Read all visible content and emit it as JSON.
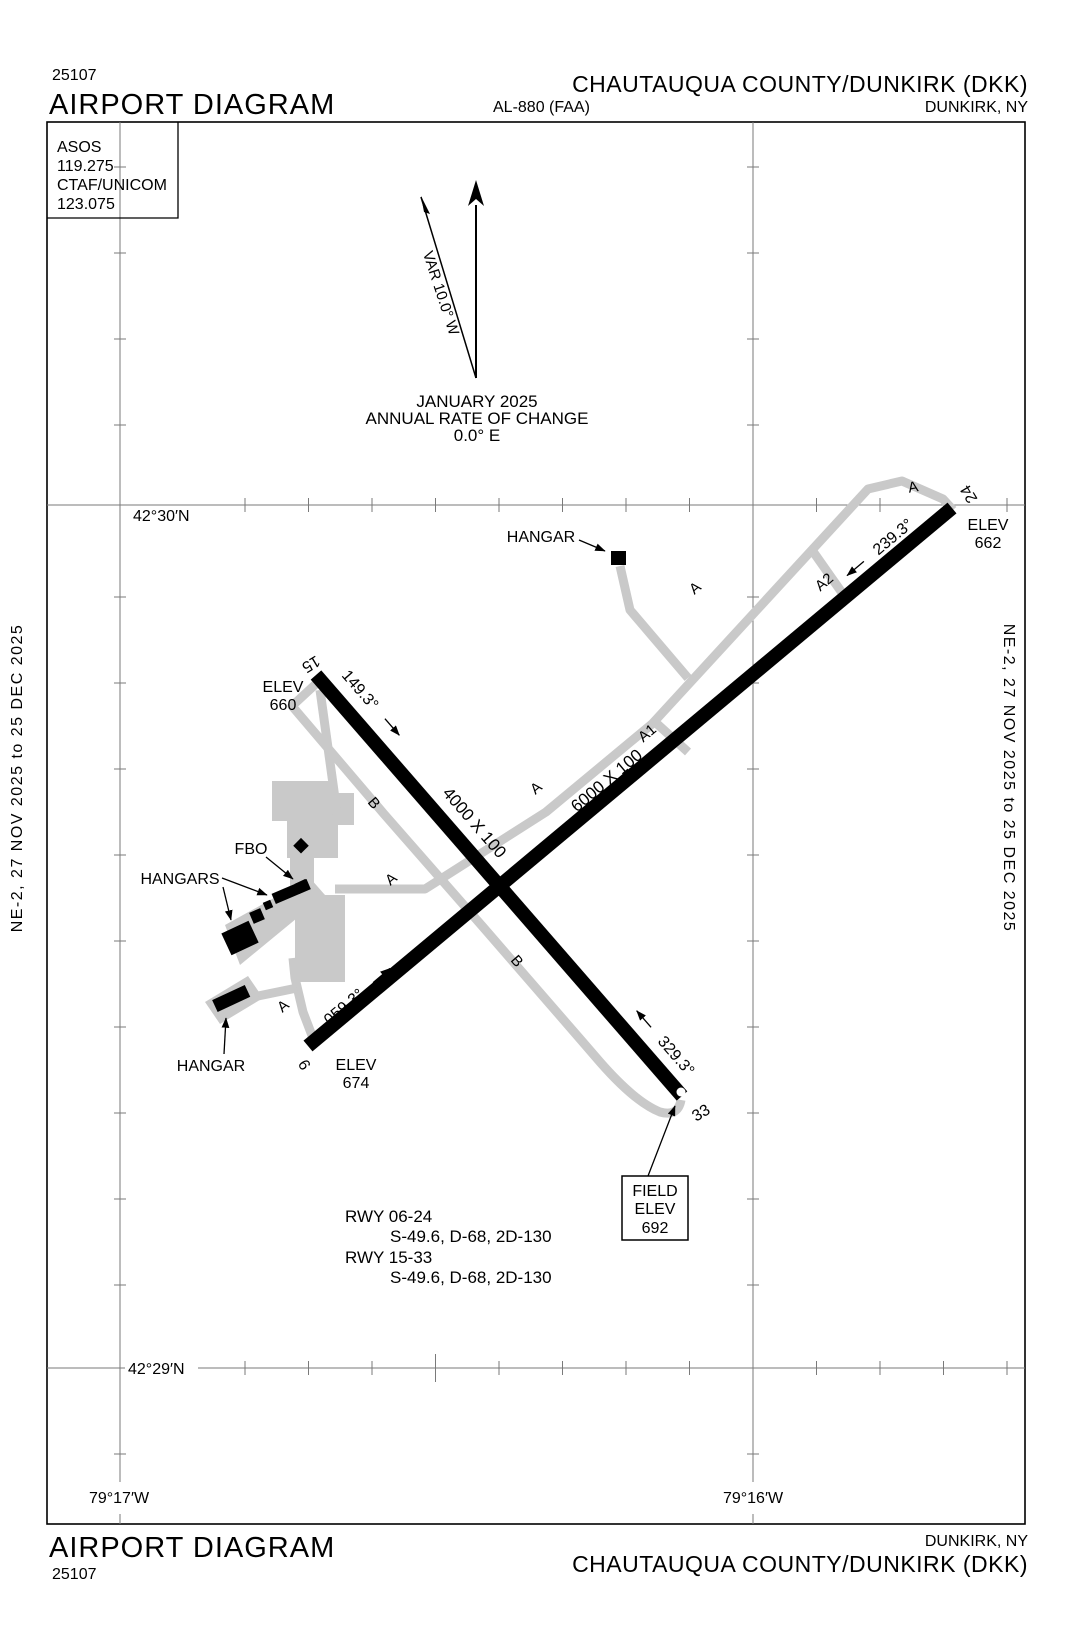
{
  "header": {
    "chart_number": "25107",
    "title": "AIRPORT DIAGRAM",
    "procedure_id": "AL-880 (FAA)",
    "airport_name": "CHAUTAUQUA COUNTY/DUNKIRK (DKK)",
    "city": "DUNKIRK, NY"
  },
  "footer": {
    "chart_number": "25107",
    "title": "AIRPORT DIAGRAM",
    "airport_name": "CHAUTAUQUA COUNTY/DUNKIRK (DKK)",
    "city": "DUNKIRK, NY"
  },
  "comms": {
    "asos_label": "ASOS",
    "asos_freq": "119.275",
    "ctaf_label": "CTAF/UNICOM",
    "ctaf_freq": "123.075"
  },
  "compass": {
    "variation": "VAR 10.0° W",
    "date": "JANUARY 2025",
    "rate_label": "ANNUAL RATE OF CHANGE",
    "rate_value": "0.0° E"
  },
  "margins": {
    "left": "NE-2, 27 NOV 2025 to 25 DEC 2025",
    "right": "NE-2, 27 NOV 2025 to 25 DEC 2025"
  },
  "grid": {
    "lat_top": "42°30′N",
    "lat_bottom": "42°29′N",
    "lon_left": "79°17′W",
    "lon_right": "79°16′W"
  },
  "labels": {
    "rwy15": "15",
    "rwy33": "33",
    "rwy6": "6",
    "rwy24": "24",
    "crs149": "149.3°",
    "crs329": "329.3°",
    "crs059": "059.3°",
    "crs239": "239.3°",
    "dim4000": "4000 X 100",
    "dim6000": "6000 X 100",
    "elev_word": "ELEV",
    "elev660": "660",
    "elev662": "662",
    "elev674": "674",
    "twyA": "A",
    "twyA1": "A1",
    "twyA2": "A2",
    "twyB": "B",
    "hangar": "HANGAR",
    "hangars": "HANGARS",
    "fbo": "FBO",
    "field_line1": "FIELD",
    "field_line2": "ELEV",
    "field_line3": "692"
  },
  "rwy_data": {
    "rwy0624_label": "RWY 06-24",
    "rwy0624_strength": "S-49.6, D-68, 2D-130",
    "rwy1533_label": "RWY 15-33",
    "rwy1533_strength": "S-49.6, D-68, 2D-130"
  },
  "colors": {
    "taxiway_gray": "#c9c9c9",
    "runway_black": "#000000",
    "grid_gray": "#7a7a7a"
  }
}
